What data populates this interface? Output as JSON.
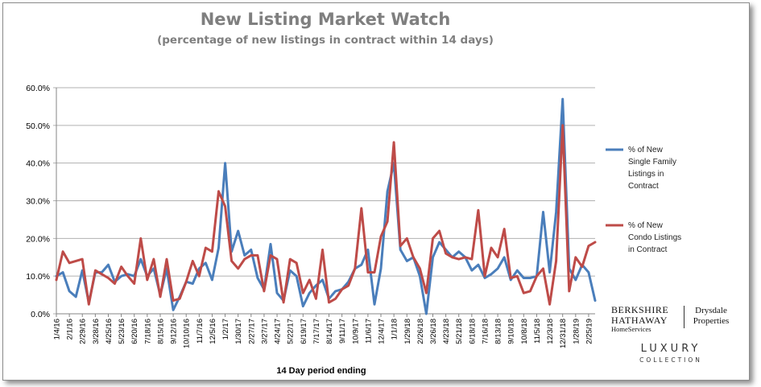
{
  "chart_data": {
    "type": "line",
    "title": "New Listing Market Watch",
    "subtitle": "(percentage of new listings in contract within 14 days)",
    "xlabel": "14 Day period ending",
    "ylabel": "",
    "ylim": [
      0,
      0.6
    ],
    "yticks": [
      "0.0%",
      "10.0%",
      "20.0%",
      "30.0%",
      "40.0%",
      "50.0%",
      "60.0%"
    ],
    "grid": "horizontal",
    "legend_position": "right",
    "categories": [
      "1/4/16",
      "1/18/16",
      "2/1/16",
      "2/15/16",
      "2/29/16",
      "3/14/16",
      "3/28/16",
      "4/11/16",
      "4/25/16",
      "5/9/16",
      "5/23/16",
      "6/6/16",
      "6/20/16",
      "7/4/16",
      "7/18/16",
      "8/1/16",
      "8/15/16",
      "8/29/16",
      "9/12/16",
      "9/26/16",
      "10/10/16",
      "10/24/16",
      "11/7/16",
      "11/21/16",
      "12/5/16",
      "12/19/16",
      "1/2/17",
      "1/16/17",
      "1/30/17",
      "2/13/17",
      "2/27/17",
      "3/13/17",
      "3/27/17",
      "4/10/17",
      "4/24/17",
      "5/8/17",
      "5/22/17",
      "6/5/17",
      "6/19/17",
      "7/3/17",
      "7/17/17",
      "7/31/17",
      "8/14/17",
      "8/28/17",
      "9/11/17",
      "9/25/17",
      "10/9/17",
      "10/23/17",
      "11/6/17",
      "11/20/17",
      "12/4/17",
      "12/18/17",
      "1/1/18",
      "1/15/18",
      "1/29/18",
      "2/12/18",
      "2/26/18",
      "3/12/18",
      "3/26/18",
      "4/9/18",
      "4/23/18",
      "5/7/18",
      "5/21/18",
      "6/4/18",
      "6/18/18",
      "7/2/18",
      "7/16/18",
      "7/30/18",
      "8/13/18",
      "8/27/18",
      "9/10/18",
      "9/24/18",
      "10/8/18",
      "10/22/18",
      "11/5/18",
      "11/19/18",
      "12/3/18",
      "12/17/18",
      "12/31/18",
      "1/14/19",
      "1/28/19",
      "2/11/19",
      "2/25/19",
      "3/11/19"
    ],
    "tick_labels": [
      "1/4/16",
      "2/1/16",
      "2/29/16",
      "3/28/16",
      "4/25/16",
      "5/23/16",
      "6/20/16",
      "7/18/16",
      "8/15/16",
      "9/12/16",
      "10/10/16",
      "11/7/16",
      "12/5/16",
      "1/2/17",
      "1/30/17",
      "2/27/17",
      "3/27/17",
      "4/24/17",
      "5/22/17",
      "6/19/17",
      "7/17/17",
      "8/14/17",
      "9/11/17",
      "10/9/17",
      "11/6/17",
      "12/4/17",
      "1/1/18",
      "1/29/18",
      "2/26/18",
      "3/26/18",
      "4/23/18",
      "5/21/18",
      "6/18/18",
      "7/16/18",
      "8/13/18",
      "9/10/18",
      "10/8/18",
      "11/5/18",
      "12/3/18",
      "12/31/18",
      "1/28/19",
      "2/25/19"
    ],
    "series": [
      {
        "name": "% of New Single Family Listings in Contract",
        "color": "#4a7ebb",
        "values": [
          0.1,
          0.11,
          0.06,
          0.045,
          0.115,
          0.03,
          0.11,
          0.11,
          0.13,
          0.085,
          0.1,
          0.105,
          0.1,
          0.145,
          0.1,
          0.12,
          0.05,
          0.12,
          0.01,
          0.045,
          0.085,
          0.08,
          0.12,
          0.135,
          0.09,
          0.175,
          0.4,
          0.165,
          0.22,
          0.155,
          0.17,
          0.095,
          0.065,
          0.185,
          0.055,
          0.035,
          0.115,
          0.1,
          0.02,
          0.055,
          0.075,
          0.09,
          0.04,
          0.06,
          0.065,
          0.085,
          0.12,
          0.13,
          0.17,
          0.025,
          0.12,
          0.325,
          0.4,
          0.17,
          0.14,
          0.15,
          0.1,
          0.0,
          0.15,
          0.19,
          0.17,
          0.15,
          0.165,
          0.15,
          0.115,
          0.13,
          0.095,
          0.105,
          0.12,
          0.15,
          0.09,
          0.115,
          0.095,
          0.095,
          0.1,
          0.27,
          0.11,
          0.27,
          0.57,
          0.12,
          0.09,
          0.13,
          0.11,
          0.035
        ]
      },
      {
        "name": "% of New Condo Listings in Contract",
        "color": "#be4b48",
        "values": [
          0.09,
          0.165,
          0.135,
          0.14,
          0.145,
          0.025,
          0.115,
          0.105,
          0.095,
          0.08,
          0.125,
          0.1,
          0.08,
          0.2,
          0.09,
          0.145,
          0.045,
          0.145,
          0.035,
          0.04,
          0.085,
          0.14,
          0.1,
          0.175,
          0.165,
          0.325,
          0.285,
          0.14,
          0.12,
          0.145,
          0.155,
          0.155,
          0.06,
          0.155,
          0.145,
          0.03,
          0.145,
          0.135,
          0.055,
          0.09,
          0.04,
          0.17,
          0.03,
          0.04,
          0.065,
          0.075,
          0.12,
          0.28,
          0.11,
          0.11,
          0.205,
          0.245,
          0.455,
          0.18,
          0.2,
          0.15,
          0.12,
          0.055,
          0.2,
          0.22,
          0.16,
          0.15,
          0.145,
          0.15,
          0.145,
          0.275,
          0.1,
          0.175,
          0.15,
          0.225,
          0.095,
          0.1,
          0.055,
          0.06,
          0.1,
          0.12,
          0.025,
          0.14,
          0.5,
          0.06,
          0.15,
          0.125,
          0.18,
          0.19
        ]
      }
    ]
  },
  "legend": {
    "series1_lines": [
      "% of New",
      "Single Family",
      "Listings in",
      "Contract"
    ],
    "series2_lines": [
      "% of New",
      "Condo Listings",
      "in Contract"
    ]
  },
  "logo": {
    "brand_line1": "BERKSHIRE",
    "brand_line2": "HATHAWAY",
    "brand_line3": "HomeServices",
    "agency_line1": "Drysdale",
    "agency_line2": "Properties",
    "collection_line1": "LUXURY",
    "collection_line2": "COLLECTION"
  }
}
